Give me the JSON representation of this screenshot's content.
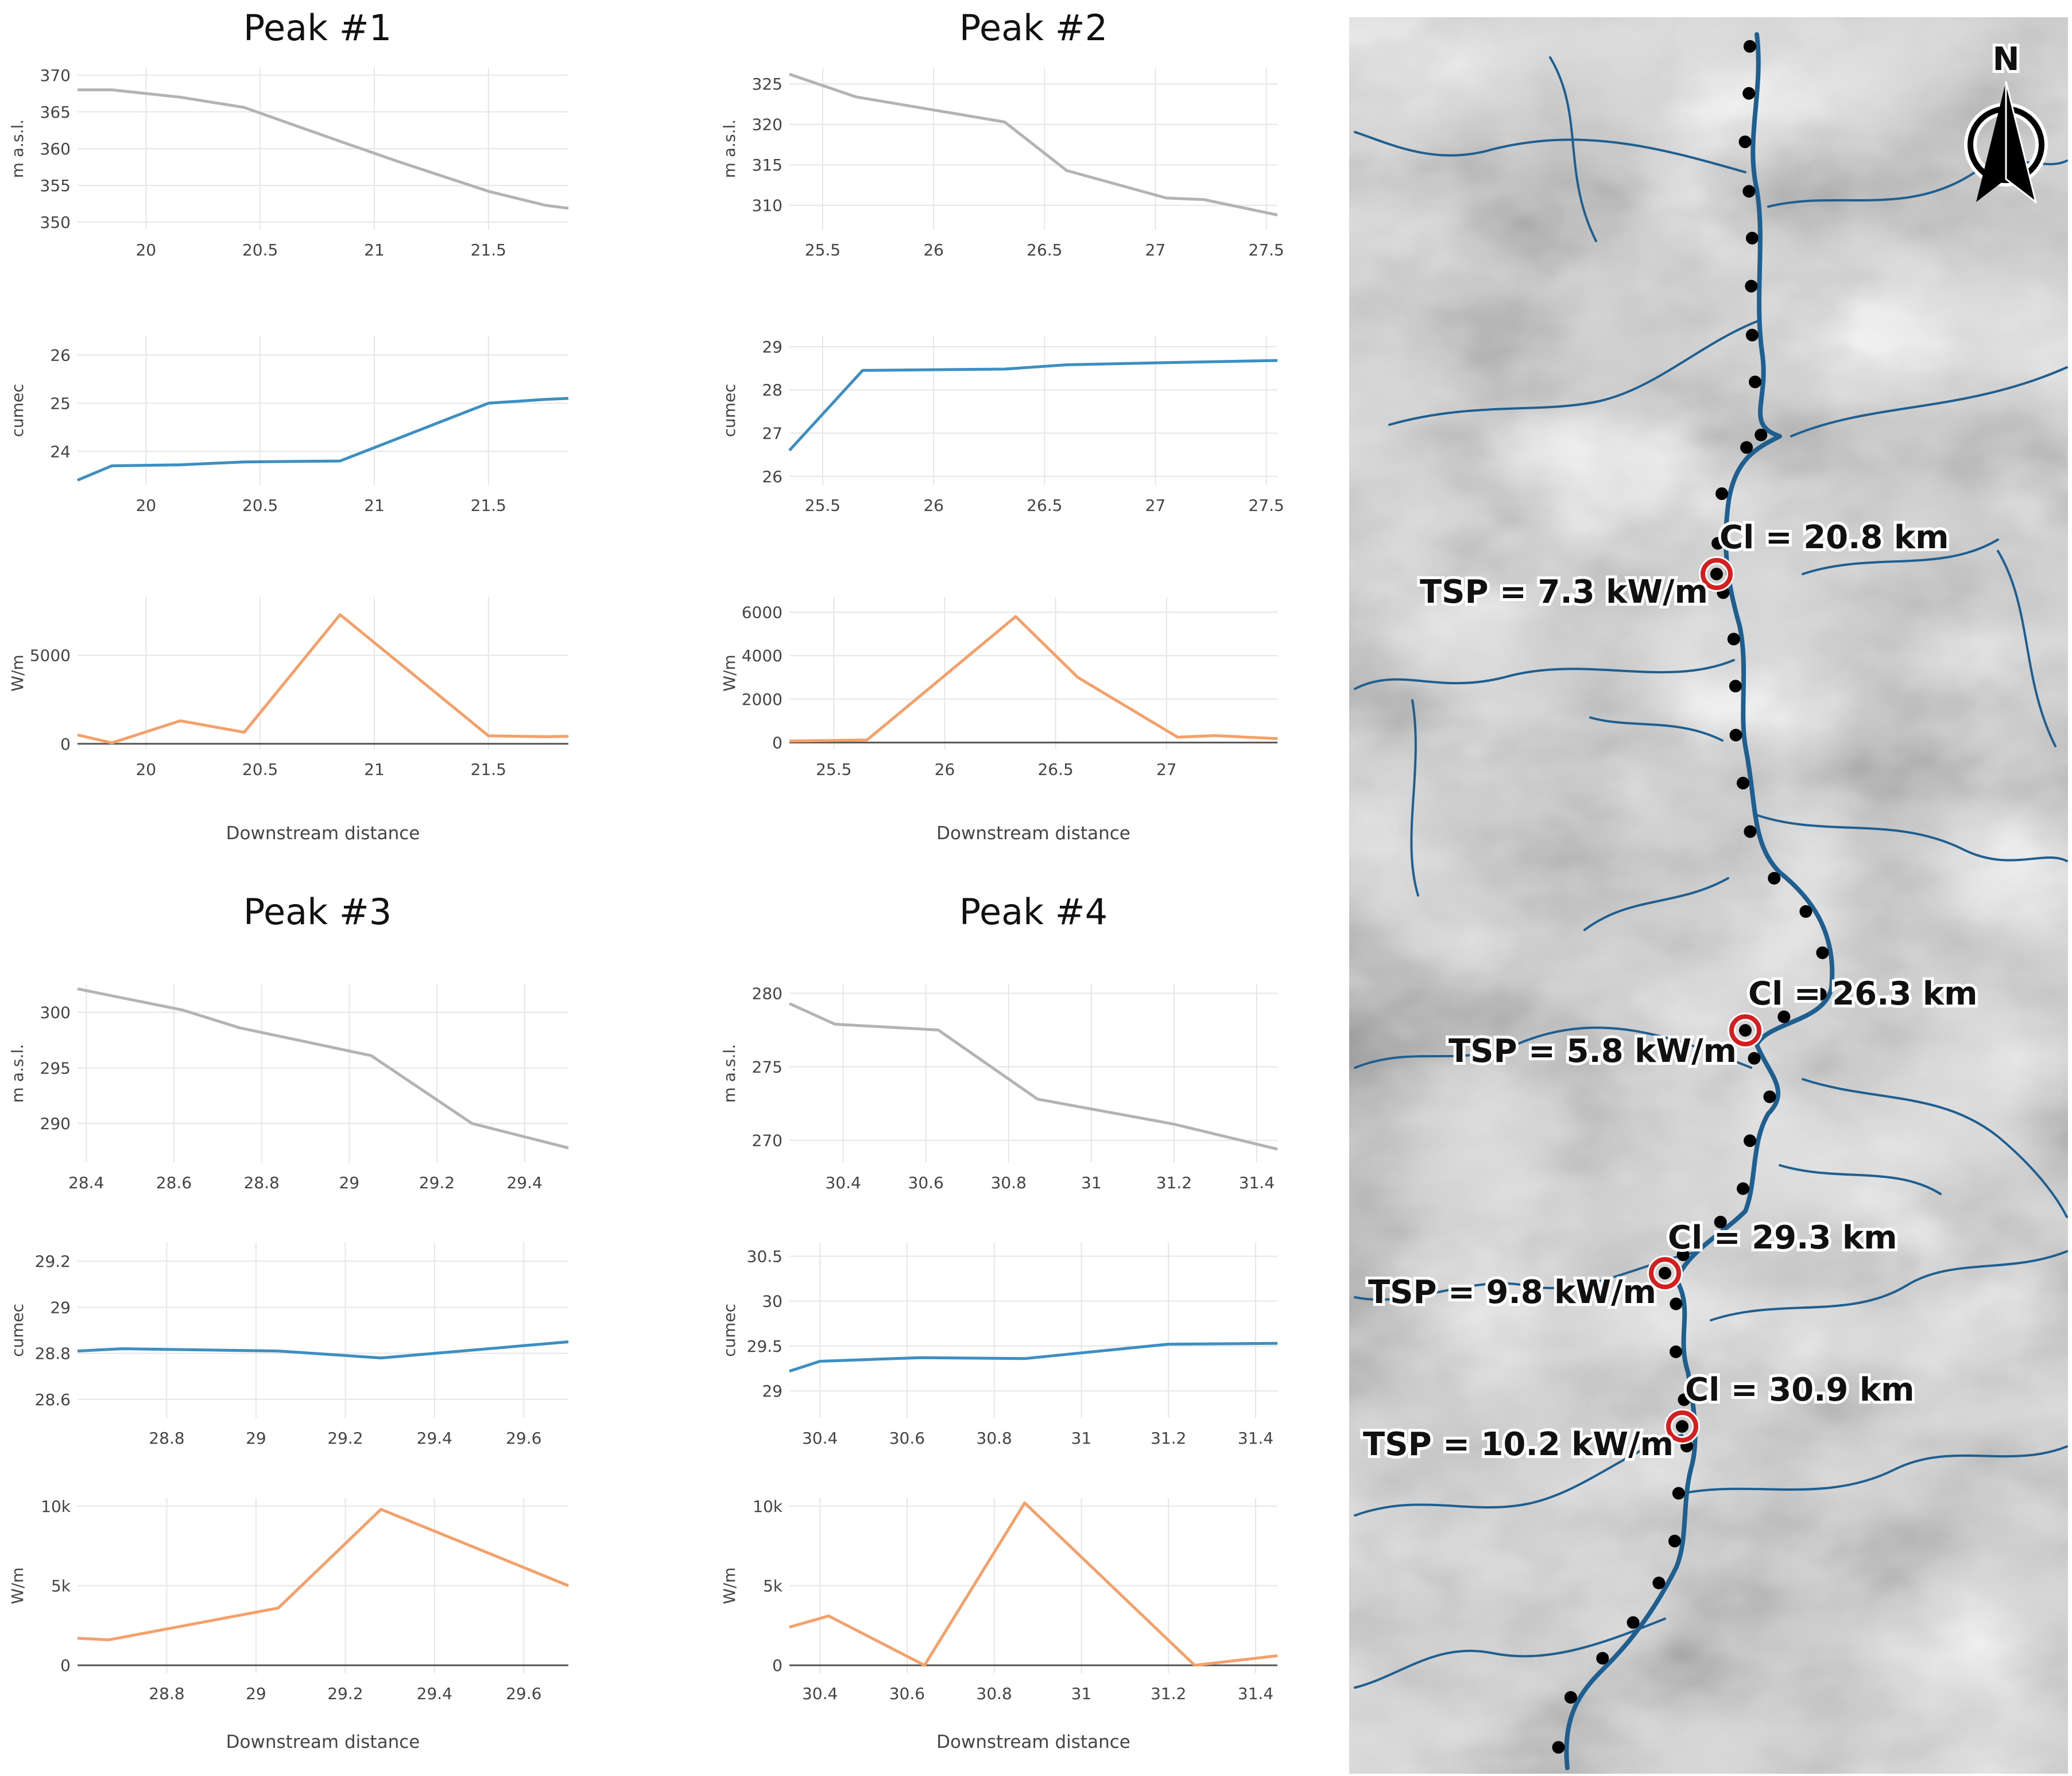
{
  "colors": {
    "elevation": "#b3b3b3",
    "discharge": "#3d8fc2",
    "power": "#f4a06a",
    "river": "#1f5f8f",
    "marker": "#d31f1f",
    "dot": "#000000"
  },
  "chart_data": [
    {
      "type": "line",
      "title": "Peak #1",
      "xlabel": "Downstream distance",
      "panels": [
        {
          "ylabel": "m a.s.l.",
          "xlim": [
            19.7,
            21.85
          ],
          "ylim": [
            349,
            371
          ],
          "xticks": [
            "20",
            "20.5",
            "21",
            "21.5"
          ],
          "yticks": [
            "350",
            "355",
            "360",
            "365",
            "370"
          ],
          "x": [
            19.7,
            19.85,
            20.15,
            20.43,
            20.85,
            21.1,
            21.5,
            21.75,
            21.85
          ],
          "y": [
            368,
            368,
            367,
            365.6,
            361,
            358.3,
            354.2,
            352.3,
            351.9
          ]
        },
        {
          "ylabel": "cumec",
          "xlim": [
            19.7,
            21.85
          ],
          "ylim": [
            23.3,
            26.4
          ],
          "xticks": [
            "20",
            "20.5",
            "21",
            "21.5"
          ],
          "yticks": [
            "24",
            "25",
            "26"
          ],
          "x": [
            19.7,
            19.85,
            20.15,
            20.43,
            20.85,
            21.5,
            21.75,
            21.85
          ],
          "y": [
            23.4,
            23.7,
            23.72,
            23.78,
            23.8,
            25.0,
            25.08,
            25.1
          ]
        },
        {
          "ylabel": "W/m",
          "xlim": [
            19.7,
            21.85
          ],
          "ylim": [
            -300,
            8300
          ],
          "xticks": [
            "20",
            "20.5",
            "21",
            "21.5"
          ],
          "yticks": [
            "0",
            "5000"
          ],
          "x": [
            19.7,
            19.85,
            20.15,
            20.43,
            20.85,
            21.5,
            21.75,
            21.85
          ],
          "y": [
            500,
            50,
            1300,
            650,
            7300,
            450,
            400,
            420
          ]
        }
      ]
    },
    {
      "type": "line",
      "title": "Peak #2",
      "xlabel": "Downstream distance",
      "panels": [
        {
          "ylabel": "m a.s.l.",
          "xlim": [
            25.35,
            27.55
          ],
          "ylim": [
            307,
            327
          ],
          "xticks": [
            "25.5",
            "26",
            "26.5",
            "27",
            "27.5"
          ],
          "yticks": [
            "310",
            "315",
            "320",
            "325"
          ],
          "x": [
            25.35,
            25.65,
            26.32,
            26.6,
            27.05,
            27.22,
            27.55
          ],
          "y": [
            326.2,
            323.4,
            320.3,
            314.3,
            310.9,
            310.7,
            308.8
          ]
        },
        {
          "ylabel": "cumec",
          "xlim": [
            25.35,
            27.55
          ],
          "ylim": [
            25.8,
            29.25
          ],
          "xticks": [
            "25.5",
            "26",
            "26.5",
            "27",
            "27.5"
          ],
          "yticks": [
            "26",
            "27",
            "28",
            "29"
          ],
          "x": [
            25.35,
            25.68,
            26.32,
            26.6,
            27.05,
            27.55
          ],
          "y": [
            26.6,
            28.45,
            28.48,
            28.58,
            28.63,
            28.68
          ]
        },
        {
          "ylabel": "W/m",
          "xlim": [
            25.3,
            27.5
          ],
          "ylim": [
            -300,
            6700
          ],
          "xticks": [
            "25.5",
            "26",
            "26.5",
            "27"
          ],
          "yticks": [
            "0",
            "2000",
            "4000",
            "6000"
          ],
          "x": [
            25.3,
            25.65,
            26.32,
            26.6,
            27.05,
            27.22,
            27.5
          ],
          "y": [
            70,
            120,
            5800,
            3000,
            250,
            320,
            180
          ]
        }
      ]
    },
    {
      "type": "line",
      "title": "Peak #3",
      "xlabel": "Downstream distance",
      "panels": [
        {
          "ylabel": "m a.s.l.",
          "xlim": [
            28.38,
            29.5
          ],
          "ylim": [
            286.5,
            302.5
          ],
          "xticks": [
            "28.4",
            "28.6",
            "28.8",
            "29",
            "29.2",
            "29.4"
          ],
          "yticks": [
            "290",
            "295",
            "300"
          ],
          "x": [
            28.38,
            28.62,
            28.75,
            29.05,
            29.28,
            29.5
          ],
          "y": [
            302.1,
            300.2,
            298.6,
            296.1,
            290,
            287.8
          ]
        },
        {
          "ylabel": "cumec",
          "xlim": [
            28.6,
            29.7
          ],
          "ylim": [
            28.52,
            29.28
          ],
          "xticks": [
            "28.8",
            "29",
            "29.2",
            "29.4",
            "29.6"
          ],
          "yticks": [
            "28.6",
            "28.8",
            "29",
            "29.2"
          ],
          "x": [
            28.6,
            28.7,
            29.05,
            29.28,
            29.7
          ],
          "y": [
            28.81,
            28.82,
            28.81,
            28.78,
            28.85
          ]
        },
        {
          "ylabel": "W/m",
          "xlim": [
            28.6,
            29.7
          ],
          "ylim": [
            -500,
            10500
          ],
          "xticks": [
            "28.8",
            "29",
            "29.2",
            "29.4",
            "29.6"
          ],
          "yticks": [
            "0",
            "5k",
            "10k"
          ],
          "x": [
            28.6,
            28.67,
            29.05,
            29.28,
            29.7
          ],
          "y": [
            1700,
            1600,
            3600,
            9800,
            5000
          ]
        }
      ]
    },
    {
      "type": "line",
      "title": "Peak #4",
      "xlabel": "Downstream distance",
      "panels": [
        {
          "ylabel": "m a.s.l.",
          "xlim": [
            30.27,
            31.45
          ],
          "ylim": [
            268.5,
            280.6
          ],
          "xticks": [
            "30.4",
            "30.6",
            "30.8",
            "31",
            "31.2",
            "31.4"
          ],
          "yticks": [
            "270",
            "275",
            "280"
          ],
          "x": [
            30.27,
            30.38,
            30.63,
            30.87,
            31.2,
            31.45
          ],
          "y": [
            279.3,
            277.9,
            277.5,
            272.8,
            271.1,
            269.4
          ]
        },
        {
          "ylabel": "cumec",
          "xlim": [
            30.33,
            31.45
          ],
          "ylim": [
            28.7,
            30.65
          ],
          "xticks": [
            "30.4",
            "30.6",
            "30.8",
            "31",
            "31.2",
            "31.4"
          ],
          "yticks": [
            "29",
            "29.5",
            "30",
            "30.5"
          ],
          "x": [
            30.33,
            30.4,
            30.63,
            30.87,
            31.2,
            31.45
          ],
          "y": [
            29.22,
            29.33,
            29.37,
            29.36,
            29.52,
            29.53
          ]
        },
        {
          "ylabel": "W/m",
          "xlim": [
            30.33,
            31.45
          ],
          "ylim": [
            -500,
            10500
          ],
          "xticks": [
            "30.4",
            "30.6",
            "30.8",
            "31",
            "31.2",
            "31.4"
          ],
          "yticks": [
            "0",
            "5k",
            "10k"
          ],
          "x": [
            30.33,
            30.42,
            30.64,
            30.87,
            31.26,
            31.45
          ],
          "y": [
            2400,
            3100,
            0,
            10200,
            0,
            600
          ]
        }
      ]
    }
  ],
  "map": {
    "north_label": "N",
    "labels": [
      {
        "cl": "Cl = 20.8 km",
        "tsp": "TSP = 7.3 kW/m"
      },
      {
        "cl": "Cl = 26.3 km",
        "tsp": "TSP = 5.8 kW/m"
      },
      {
        "cl": "Cl = 29.3 km",
        "tsp": "TSP = 9.8 kW/m"
      },
      {
        "cl": "Cl = 30.9 km",
        "tsp": "TSP = 10.2 kW/m"
      }
    ]
  }
}
